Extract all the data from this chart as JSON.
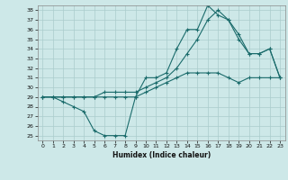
{
  "xlabel": "Humidex (Indice chaleur)",
  "bg_color": "#cde8e8",
  "grid_color": "#aacccc",
  "line_color": "#1a6b6b",
  "xlim": [
    -0.5,
    23.5
  ],
  "ylim": [
    24.5,
    38.5
  ],
  "yticks": [
    25,
    26,
    27,
    28,
    29,
    30,
    31,
    32,
    33,
    34,
    35,
    36,
    37,
    38
  ],
  "xticks": [
    0,
    1,
    2,
    3,
    4,
    5,
    6,
    7,
    8,
    9,
    10,
    11,
    12,
    13,
    14,
    15,
    16,
    17,
    18,
    19,
    20,
    21,
    22,
    23
  ],
  "line1_x": [
    0,
    1,
    2,
    3,
    4,
    5,
    6,
    7,
    8,
    9,
    10,
    11,
    12,
    13,
    14,
    15,
    16,
    17,
    18,
    19,
    20,
    21,
    22,
    23
  ],
  "line1_y": [
    29,
    29,
    29,
    29,
    29,
    29,
    29,
    29,
    29,
    29,
    29.5,
    30,
    30.5,
    31,
    31.5,
    31.5,
    31.5,
    31.5,
    31,
    30.5,
    31,
    31,
    31,
    31
  ],
  "line2_x": [
    0,
    1,
    2,
    3,
    4,
    5,
    6,
    7,
    8,
    9,
    10,
    11,
    12,
    13,
    14,
    15,
    16,
    17,
    18,
    19,
    20,
    21,
    22,
    23
  ],
  "line2_y": [
    29,
    29,
    28.5,
    28,
    27.5,
    25.5,
    25,
    25,
    25,
    29,
    31,
    31,
    31.5,
    34,
    36,
    36,
    38.5,
    37.5,
    37,
    35,
    33.5,
    33.5,
    34,
    31
  ],
  "line3_x": [
    0,
    1,
    2,
    3,
    4,
    5,
    6,
    7,
    8,
    9,
    10,
    11,
    12,
    13,
    14,
    15,
    16,
    17,
    18,
    19,
    20,
    21,
    22,
    23
  ],
  "line3_y": [
    29,
    29,
    29,
    29,
    29,
    29,
    29.5,
    29.5,
    29.5,
    29.5,
    30,
    30.5,
    31,
    32,
    33.5,
    35,
    37,
    38,
    37,
    35.5,
    33.5,
    33.5,
    34,
    31
  ]
}
